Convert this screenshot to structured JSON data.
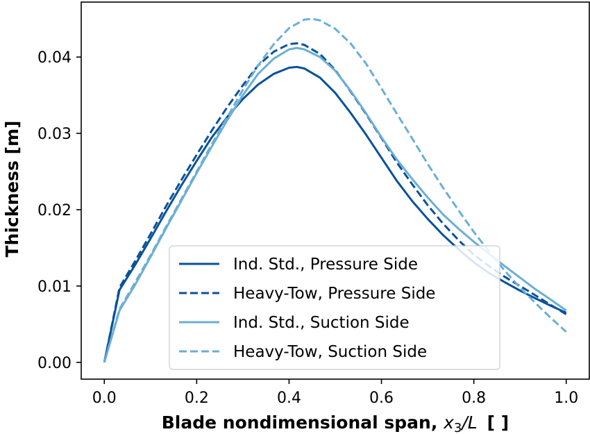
{
  "chart_data": {
    "type": "line",
    "xlabel": "Blade nondimensional span, ",
    "xlabel_math": "x",
    "xlabel_sub": "3",
    "xlabel_tail": "/L",
    "xlabel_unit": "[ ]",
    "ylabel": "Thickness [m]",
    "xlim": [
      -0.05,
      1.05
    ],
    "ylim": [
      -0.0022,
      0.0472
    ],
    "xticks": [
      0.0,
      0.2,
      0.4,
      0.6,
      0.8,
      1.0
    ],
    "xtick_labels": [
      "0.0",
      "0.2",
      "0.4",
      "0.6",
      "0.8",
      "1.0"
    ],
    "yticks": [
      0.0,
      0.01,
      0.02,
      0.03,
      0.04
    ],
    "ytick_labels": [
      "0.00",
      "0.01",
      "0.02",
      "0.03",
      "0.04"
    ],
    "grid": false,
    "legend_position": "lower-center",
    "series": [
      {
        "name": "Ind. Std., Pressure Side",
        "color": "#08519c",
        "dash": "solid",
        "x": [
          0,
          0.033,
          0.067,
          0.1,
          0.133,
          0.167,
          0.2,
          0.233,
          0.267,
          0.3,
          0.333,
          0.367,
          0.4,
          0.417,
          0.433,
          0.467,
          0.5,
          0.533,
          0.567,
          0.6,
          0.633,
          0.667,
          0.7,
          0.733,
          0.767,
          0.8,
          0.833,
          0.867,
          0.9,
          0.933,
          0.967,
          1.0
        ],
        "y": [
          0,
          0.0095,
          0.0128,
          0.0162,
          0.0197,
          0.0232,
          0.0264,
          0.0295,
          0.0322,
          0.0345,
          0.0364,
          0.0378,
          0.0386,
          0.0387,
          0.0385,
          0.0373,
          0.0353,
          0.0327,
          0.0298,
          0.0268,
          0.0238,
          0.0211,
          0.0188,
          0.0167,
          0.0148,
          0.0131,
          0.0117,
          0.0105,
          0.0094,
          0.0084,
          0.0074,
          0.0065
        ]
      },
      {
        "name": "Heavy-Tow, Pressure Side",
        "color": "#08519c",
        "dash": "dashed",
        "x": [
          0,
          0.033,
          0.067,
          0.1,
          0.133,
          0.167,
          0.2,
          0.233,
          0.267,
          0.3,
          0.333,
          0.367,
          0.4,
          0.417,
          0.433,
          0.467,
          0.5,
          0.533,
          0.567,
          0.6,
          0.633,
          0.667,
          0.7,
          0.733,
          0.767,
          0.8,
          0.833,
          0.867,
          0.9,
          0.933,
          0.967,
          1.0
        ],
        "y": [
          0,
          0.0098,
          0.0133,
          0.0168,
          0.0204,
          0.0239,
          0.0272,
          0.0304,
          0.0335,
          0.0363,
          0.0389,
          0.0407,
          0.0417,
          0.0418,
          0.0416,
          0.0404,
          0.0383,
          0.0355,
          0.0325,
          0.0294,
          0.0262,
          0.0233,
          0.0206,
          0.0182,
          0.016,
          0.0141,
          0.0126,
          0.0112,
          0.01,
          0.0088,
          0.0075,
          0.0063
        ]
      },
      {
        "name": "Ind. Std., Suction Side",
        "color": "#6baed6",
        "dash": "solid",
        "x": [
          0,
          0.033,
          0.067,
          0.1,
          0.133,
          0.167,
          0.2,
          0.233,
          0.267,
          0.3,
          0.333,
          0.367,
          0.4,
          0.417,
          0.433,
          0.467,
          0.5,
          0.533,
          0.567,
          0.6,
          0.633,
          0.667,
          0.7,
          0.733,
          0.767,
          0.8,
          0.833,
          0.867,
          0.9,
          0.933,
          0.967,
          1.0
        ],
        "y": [
          0,
          0.0068,
          0.0102,
          0.0138,
          0.0175,
          0.0212,
          0.0248,
          0.0283,
          0.0318,
          0.035,
          0.0378,
          0.0398,
          0.041,
          0.0412,
          0.041,
          0.04,
          0.0382,
          0.0356,
          0.0326,
          0.0295,
          0.0266,
          0.024,
          0.0216,
          0.0194,
          0.0175,
          0.0158,
          0.0142,
          0.0126,
          0.0111,
          0.0096,
          0.0082,
          0.0068
        ]
      },
      {
        "name": "Heavy-Tow, Suction Side",
        "color": "#6baed6",
        "dash": "dashed",
        "x": [
          0,
          0.033,
          0.067,
          0.1,
          0.133,
          0.167,
          0.2,
          0.233,
          0.267,
          0.3,
          0.333,
          0.367,
          0.4,
          0.433,
          0.45,
          0.467,
          0.5,
          0.533,
          0.567,
          0.6,
          0.633,
          0.667,
          0.7,
          0.733,
          0.767,
          0.8,
          0.833,
          0.867,
          0.9,
          0.933,
          0.967,
          1.0
        ],
        "y": [
          0,
          0.007,
          0.0105,
          0.014,
          0.0177,
          0.0214,
          0.025,
          0.0286,
          0.0322,
          0.0357,
          0.0389,
          0.0417,
          0.0438,
          0.0449,
          0.045,
          0.0448,
          0.0437,
          0.0418,
          0.0391,
          0.0359,
          0.0326,
          0.0293,
          0.026,
          0.0229,
          0.0199,
          0.0171,
          0.0145,
          0.012,
          0.0098,
          0.0078,
          0.0058,
          0.004
        ]
      }
    ]
  }
}
